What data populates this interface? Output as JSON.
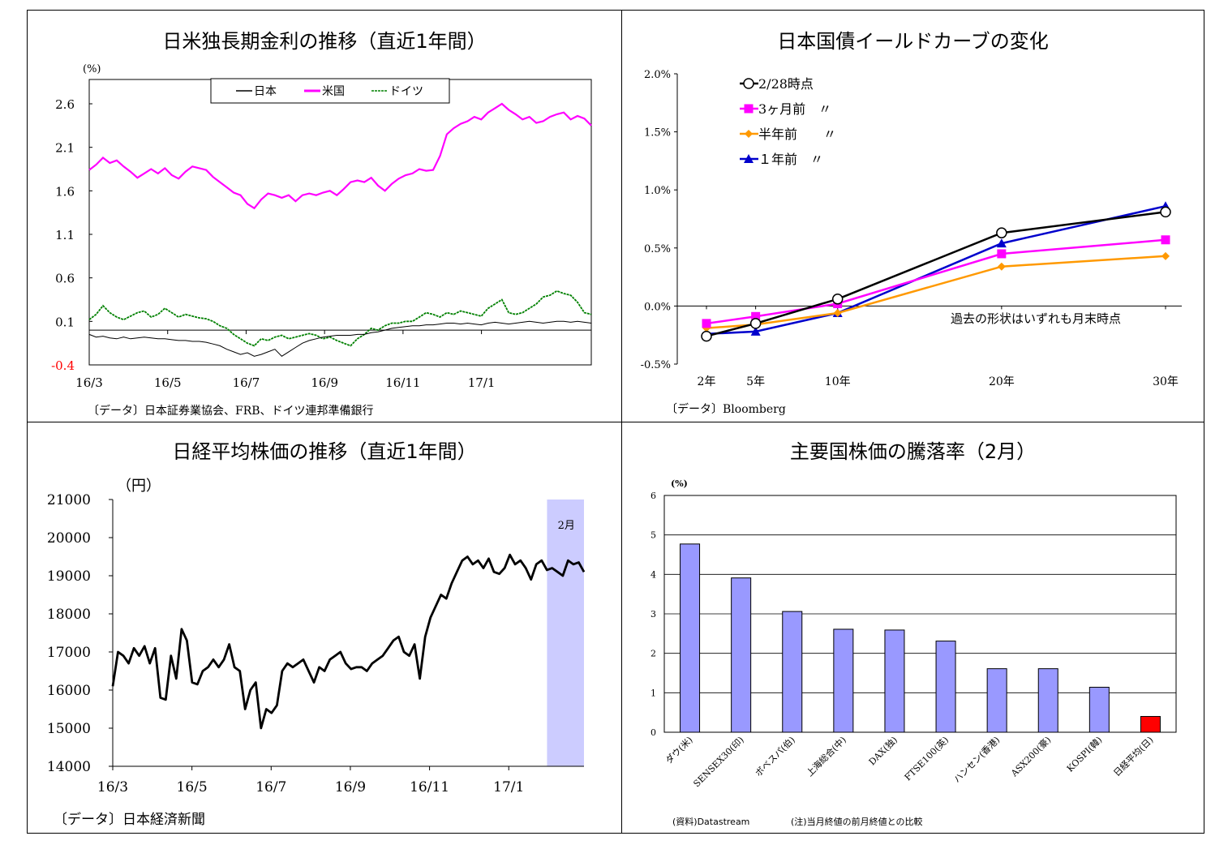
{
  "charts": [
    {
      "title": "日米独長期金利の推移（直近1年間）",
      "source": "〔データ〕日本証券業協会、FRB、ドイツ連邦準備銀行",
      "chart_data": {
        "type": "line",
        "unit": "(%)",
        "y_ticks": [
          "2.6",
          "2.1",
          "1.6",
          "1.1",
          "0.6",
          "0.1",
          "-0.4"
        ],
        "ylim": [
          -0.4,
          2.6
        ],
        "x_ticks": [
          "16/3",
          "16/5",
          "16/7",
          "16/9",
          "16/11",
          "17/1"
        ],
        "legend": [
          "日本",
          "米国",
          "ドイツ"
        ],
        "colors": {
          "日本": "#000000",
          "米国": "#ff00ff",
          "ドイツ": "#008000"
        },
        "series": [
          {
            "name": "米国",
            "values": [
              1.84,
              1.9,
              1.98,
              1.92,
              1.95,
              1.88,
              1.82,
              1.75,
              1.8,
              1.85,
              1.8,
              1.86,
              1.78,
              1.74,
              1.82,
              1.88,
              1.86,
              1.84,
              1.76,
              1.7,
              1.64,
              1.58,
              1.55,
              1.45,
              1.4,
              1.5,
              1.57,
              1.55,
              1.52,
              1.55,
              1.48,
              1.55,
              1.57,
              1.55,
              1.58,
              1.6,
              1.55,
              1.62,
              1.7,
              1.72,
              1.7,
              1.75,
              1.66,
              1.6,
              1.68,
              1.74,
              1.78,
              1.8,
              1.85,
              1.83,
              1.84,
              2.0,
              2.25,
              2.32,
              2.37,
              2.4,
              2.45,
              2.42,
              2.5,
              2.55,
              2.6,
              2.53,
              2.48,
              2.42,
              2.45,
              2.38,
              2.4,
              2.45,
              2.48,
              2.5,
              2.42,
              2.46,
              2.43,
              2.35
            ]
          },
          {
            "name": "ドイツ",
            "values": [
              0.12,
              0.18,
              0.28,
              0.2,
              0.15,
              0.12,
              0.16,
              0.2,
              0.22,
              0.15,
              0.18,
              0.25,
              0.2,
              0.15,
              0.18,
              0.16,
              0.14,
              0.13,
              0.1,
              0.05,
              0.02,
              -0.05,
              -0.1,
              -0.15,
              -0.18,
              -0.1,
              -0.12,
              -0.08,
              -0.06,
              -0.1,
              -0.08,
              -0.06,
              -0.04,
              -0.06,
              -0.1,
              -0.08,
              -0.12,
              -0.15,
              -0.18,
              -0.1,
              -0.05,
              0.02,
              0.0,
              0.05,
              0.08,
              0.08,
              0.1,
              0.1,
              0.15,
              0.2,
              0.18,
              0.15,
              0.2,
              0.18,
              0.22,
              0.2,
              0.18,
              0.16,
              0.25,
              0.3,
              0.35,
              0.2,
              0.18,
              0.2,
              0.25,
              0.3,
              0.38,
              0.4,
              0.45,
              0.42,
              0.4,
              0.32,
              0.2,
              0.18
            ]
          },
          {
            "name": "日本",
            "values": [
              -0.05,
              -0.08,
              -0.07,
              -0.09,
              -0.1,
              -0.08,
              -0.1,
              -0.09,
              -0.08,
              -0.09,
              -0.1,
              -0.1,
              -0.11,
              -0.12,
              -0.12,
              -0.13,
              -0.13,
              -0.14,
              -0.16,
              -0.18,
              -0.22,
              -0.25,
              -0.28,
              -0.26,
              -0.3,
              -0.28,
              -0.25,
              -0.22,
              -0.3,
              -0.25,
              -0.2,
              -0.15,
              -0.12,
              -0.1,
              -0.08,
              -0.07,
              -0.06,
              -0.06,
              -0.06,
              -0.05,
              -0.05,
              -0.03,
              -0.02,
              0.0,
              0.02,
              0.03,
              0.04,
              0.05,
              0.05,
              0.06,
              0.06,
              0.07,
              0.08,
              0.08,
              0.07,
              0.08,
              0.07,
              0.06,
              0.08,
              0.09,
              0.08,
              0.07,
              0.08,
              0.09,
              0.1,
              0.09,
              0.08,
              0.09,
              0.1,
              0.1,
              0.09,
              0.1,
              0.09,
              0.08
            ]
          }
        ]
      }
    },
    {
      "title": "日本国債イールドカーブの変化",
      "source": "〔データ〕Bloomberg",
      "annotation": "過去の形状はいずれも月末時点",
      "chart_data": {
        "type": "line",
        "categories": [
          "2年",
          "5年",
          "10年",
          "20年",
          "30年"
        ],
        "x_positions_years": [
          2,
          5,
          10,
          20,
          30
        ],
        "y_ticks": [
          "2.0%",
          "1.5%",
          "1.0%",
          "0.5%",
          "0.0%",
          "-0.5%"
        ],
        "ylim": [
          -0.5,
          2.0
        ],
        "series": [
          {
            "name": "2/28時点",
            "label": "2/28時点",
            "color": "#000000",
            "marker": "circle-open",
            "values": [
              -0.26,
              -0.15,
              0.06,
              0.63,
              0.81
            ]
          },
          {
            "name": "3ヶ月前",
            "label": "3ヶ月前　〃",
            "color": "#ff00ff",
            "marker": "square",
            "values": [
              -0.15,
              -0.09,
              0.02,
              0.45,
              0.57
            ]
          },
          {
            "name": "半年前",
            "label": "半年前　　〃",
            "color": "#ff9900",
            "marker": "diamond",
            "values": [
              -0.19,
              -0.16,
              -0.06,
              0.34,
              0.43
            ]
          },
          {
            "name": "1年前",
            "label": "１年前　〃",
            "color": "#0000cc",
            "marker": "triangle",
            "values": [
              -0.24,
              -0.22,
              -0.06,
              0.54,
              0.86
            ]
          }
        ]
      }
    },
    {
      "title": "日経平均株価の推移（直近1年間）",
      "source": "〔データ〕日本経済新聞",
      "chart_data": {
        "type": "line",
        "unit": "（円）",
        "y_ticks": [
          "21000",
          "20000",
          "19000",
          "18000",
          "17000",
          "16000",
          "15000",
          "14000"
        ],
        "ylim": [
          14000,
          21000
        ],
        "x_ticks": [
          "16/3",
          "16/5",
          "16/7",
          "16/9",
          "16/11",
          "17/1"
        ],
        "shade_label": "2月",
        "shade_range": [
          0.925,
          1.0
        ],
        "series": [
          {
            "name": "日経平均",
            "color": "#000000",
            "values": [
              16100,
              17000,
              16900,
              16700,
              17100,
              16900,
              17150,
              16700,
              17100,
              15800,
              15750,
              16900,
              16300,
              17600,
              17300,
              16200,
              16150,
              16500,
              16600,
              16800,
              16600,
              16800,
              17200,
              16600,
              16500,
              15500,
              16000,
              16200,
              15000,
              15500,
              15400,
              15600,
              16500,
              16700,
              16600,
              16700,
              16800,
              16500,
              16200,
              16600,
              16500,
              16800,
              16900,
              17000,
              16700,
              16550,
              16600,
              16600,
              16500,
              16700,
              16800,
              16900,
              17100,
              17300,
              17400,
              17000,
              16900,
              17200,
              16300,
              17400,
              17900,
              18200,
              18500,
              18400,
              18800,
              19100,
              19400,
              19500,
              19300,
              19400,
              19200,
              19450,
              19100,
              19050,
              19200,
              19550,
              19300,
              19400,
              19200,
              18900,
              19300,
              19400,
              19150,
              19200,
              19100,
              19000,
              19400,
              19300,
              19350,
              19100
            ]
          }
        ]
      }
    },
    {
      "title": "主要国株価の騰落率（2月）",
      "unit": "(%)",
      "source_left": "(資料)Datastream",
      "source_right": "(注)当月終値の前月終値との比較",
      "chart_data": {
        "type": "bar",
        "categories": [
          "ダウ(米)",
          "SENSEX30(印)",
          "ボベスパ(伯)",
          "上海総合(中)",
          "DAX(独)",
          "FTSE100(英)",
          "ハンセン(香港)",
          "ASX200(豪)",
          "KOSPI(韓)",
          "日経平均(日)"
        ],
        "values": [
          4.77,
          3.91,
          3.06,
          2.61,
          2.59,
          2.31,
          1.61,
          1.61,
          1.14,
          0.4
        ],
        "colors": [
          "#9999ff",
          "#9999ff",
          "#9999ff",
          "#9999ff",
          "#9999ff",
          "#9999ff",
          "#9999ff",
          "#9999ff",
          "#9999ff",
          "#ff0000"
        ],
        "y_ticks": [
          "6",
          "5",
          "4",
          "3",
          "2",
          "1",
          "0"
        ],
        "ylim": [
          0,
          6
        ]
      }
    }
  ]
}
